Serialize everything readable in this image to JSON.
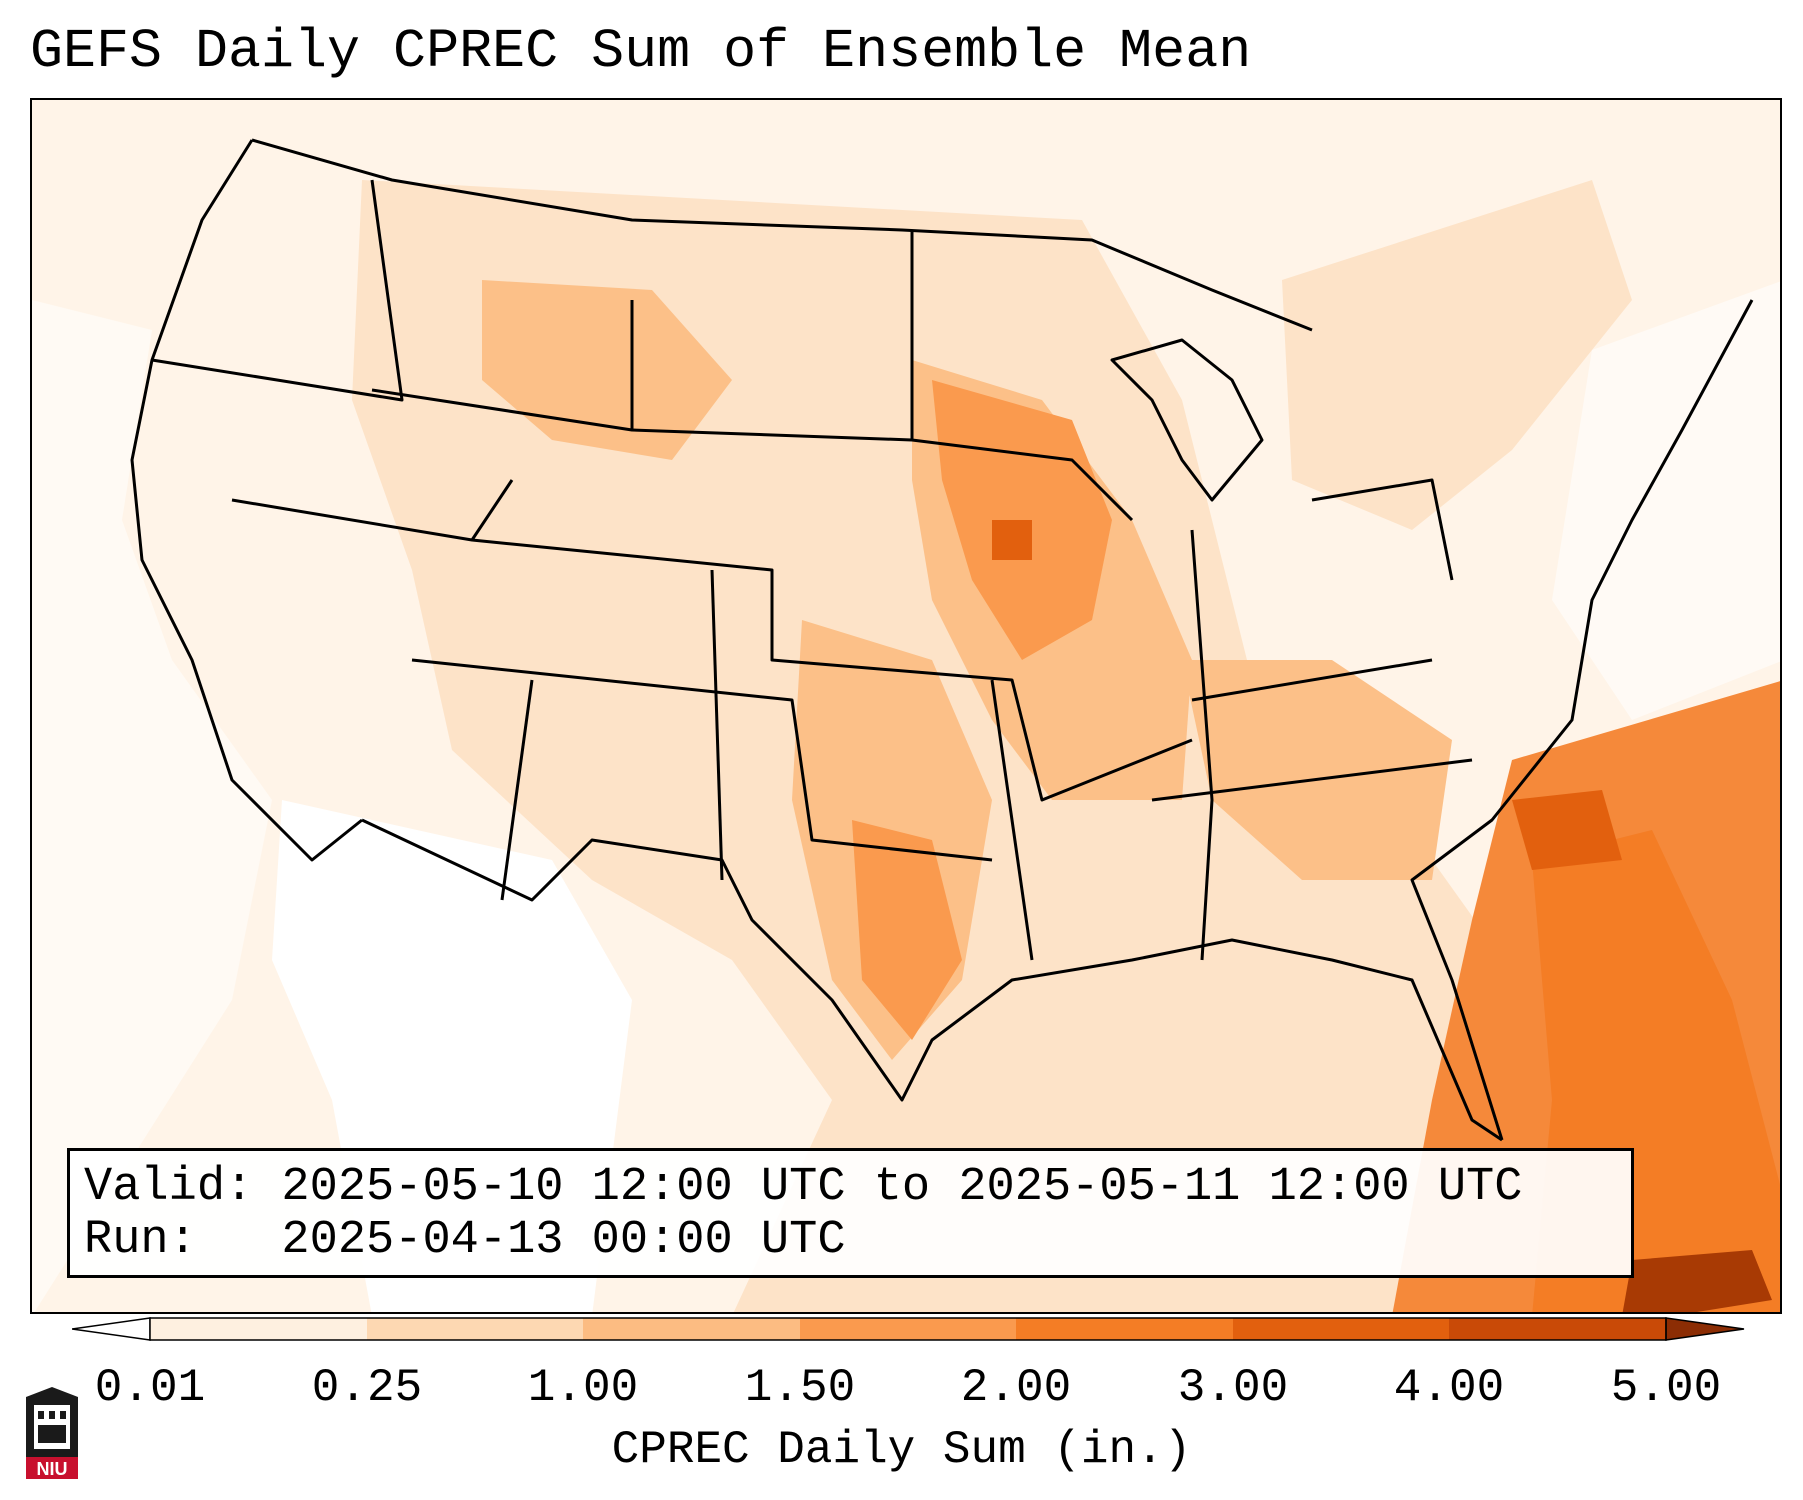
{
  "title": "GEFS Daily CPREC Sum of Ensemble Mean",
  "info": {
    "valid_line": "Valid: 2025-05-10 12:00 UTC to 2025-05-11 12:00 UTC",
    "run_line": "Run:   2025-04-13 00:00 UTC"
  },
  "colorbar": {
    "label": "CPREC Daily Sum (in.)",
    "ticks": [
      "0.01",
      "0.25",
      "1.00",
      "1.50",
      "2.00",
      "3.00",
      "4.00",
      "5.00"
    ],
    "colors": [
      "#fef0e0",
      "#fdd8b2",
      "#fcbc82",
      "#fa9a4e",
      "#f47d25",
      "#e2600e",
      "#c94a07"
    ],
    "extend_low": "#ffffff",
    "extend_high": "#8c2d04"
  },
  "logo": {
    "text": "NIU",
    "color": "#c8102e"
  }
}
